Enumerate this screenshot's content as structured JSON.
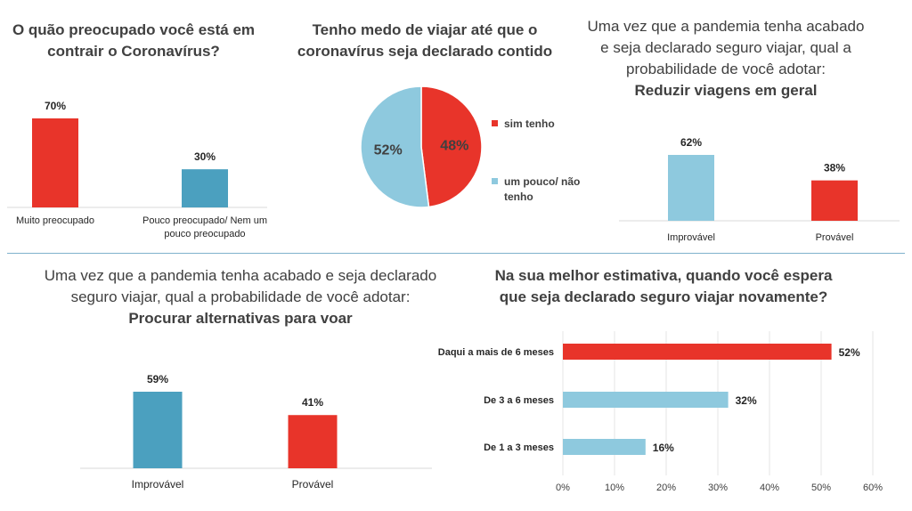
{
  "charts": {
    "concern": {
      "title": "O quão preocupado você está em contrair o Coronavírus?",
      "chart_data": {
        "type": "bar",
        "categories": [
          "Muito preocupado",
          "Pouco preocupado/ Nem um pouco preocupado"
        ],
        "values": [
          70,
          30
        ],
        "value_labels": [
          "70%",
          "30%"
        ],
        "colors": [
          "#e8342a",
          "#4ba0bf"
        ]
      }
    },
    "fear": {
      "title": "Tenho medo de viajar até que o coronavírus seja declarado contido",
      "chart_data": {
        "type": "pie",
        "categories": [
          "sim tenho",
          "um pouco/ não tenho"
        ],
        "values": [
          48,
          52
        ],
        "value_labels": [
          "48%",
          "52%"
        ],
        "colors": [
          "#e8342a",
          "#8ec9de"
        ],
        "legend_position": "right"
      }
    },
    "reduce": {
      "title_pre": "Uma vez que a pandemia tenha acabado e seja declarado seguro viajar, qual a probabilidade de você adotar:",
      "title_bold": "Reduzir viagens em geral",
      "chart_data": {
        "type": "bar",
        "categories": [
          "Improvável",
          "Provável"
        ],
        "values": [
          62,
          38
        ],
        "value_labels": [
          "62%",
          "38%"
        ],
        "colors": [
          "#8ec9de",
          "#e8342a"
        ]
      }
    },
    "alternatives": {
      "title_pre": "Uma vez que a pandemia tenha acabado e seja declarado seguro viajar, qual a probabilidade de você adotar:",
      "title_bold": "Procurar alternativas para voar",
      "chart_data": {
        "type": "bar",
        "categories": [
          "Improvável",
          "Provável"
        ],
        "values": [
          59,
          41
        ],
        "value_labels": [
          "59%",
          "41%"
        ],
        "colors": [
          "#4ba0bf",
          "#e8342a"
        ]
      }
    },
    "when": {
      "title": "Na sua melhor estimativa, quando você espera que seja declarado seguro viajar novamente?",
      "chart_data": {
        "type": "bar",
        "orientation": "horizontal",
        "categories": [
          "Daqui a mais de 6 meses",
          "De 3 a 6 meses",
          "De 1 a 3 meses"
        ],
        "values": [
          52,
          32,
          16
        ],
        "value_labels": [
          "52%",
          "32%",
          "16%"
        ],
        "colors": [
          "#e8342a",
          "#8ec9de",
          "#8ec9de"
        ],
        "xlim": [
          0,
          60
        ],
        "xticks": [
          "0%",
          "10%",
          "20%",
          "30%",
          "40%",
          "50%",
          "60%"
        ],
        "grid": true
      }
    }
  }
}
